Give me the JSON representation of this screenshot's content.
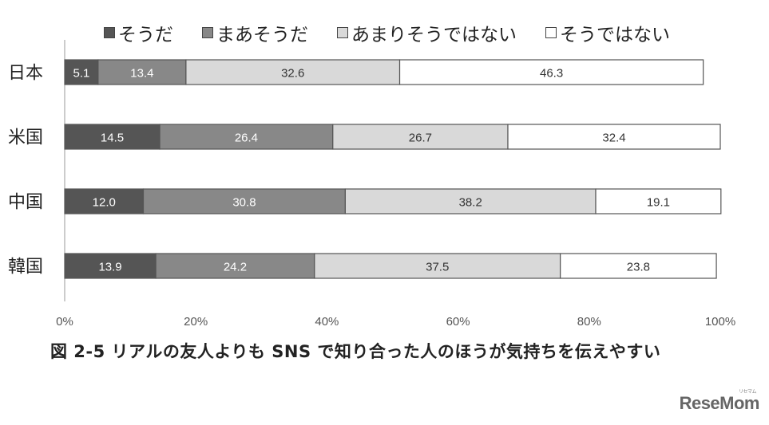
{
  "chart_data": {
    "type": "bar",
    "orientation": "horizontal",
    "stacked": true,
    "categories": [
      "日本",
      "米国",
      "中国",
      "韓国"
    ],
    "series": [
      {
        "name": "そうだ",
        "color": "#555555",
        "values": [
          5.1,
          14.5,
          12.0,
          13.9
        ],
        "labels": [
          "5.1",
          "14.5",
          "12.0",
          "13.9"
        ]
      },
      {
        "name": "まあそうだ",
        "color": "#888888",
        "values": [
          13.4,
          26.4,
          30.8,
          24.2
        ],
        "labels": [
          "13.4",
          "26.4",
          "30.8",
          "24.2"
        ]
      },
      {
        "name": "あまりそうではない",
        "color": "#d9d9d9",
        "values": [
          32.6,
          26.7,
          38.2,
          37.5
        ],
        "labels": [
          "32.6",
          "26.7",
          "38.2",
          "37.5"
        ]
      },
      {
        "name": "そうではない",
        "color": "#ffffff",
        "values": [
          46.3,
          32.4,
          19.1,
          23.8
        ],
        "labels": [
          "46.3",
          "32.4",
          "19.1",
          "23.8"
        ]
      }
    ],
    "xlim": [
      0,
      100
    ],
    "xticks": [
      "0%",
      "20%",
      "40%",
      "60%",
      "80%",
      "100%"
    ],
    "legend_position": "top",
    "grid": false
  },
  "caption": "図 2-5 リアルの友人よりも SNS で知り合った人のほうが気持ちを伝えやすい",
  "logo": "ReseMom",
  "logo_sub": "リセマム"
}
